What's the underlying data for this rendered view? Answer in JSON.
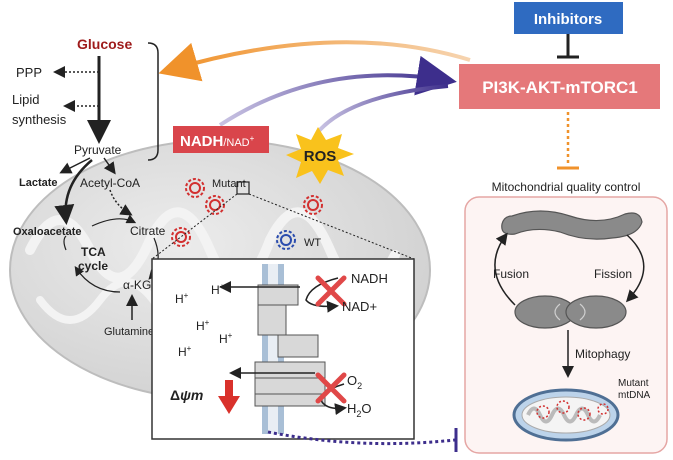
{
  "inhibitors": "Inhibitors",
  "pathway": "PI3K-AKT-mTORC1",
  "qc_title": "Mitochondrial quality control",
  "fusion": "Fusion",
  "fission": "Fission",
  "mitophagy": "Mitophagy",
  "mutant_mtdna": [
    "Mutant",
    "mtDNA"
  ],
  "glucose": "Glucose",
  "ppp": "PPP",
  "lipid": [
    "Lipid",
    "synthesis"
  ],
  "pyruvate": "Pyruvate",
  "lactate": "Lactate",
  "acetyl_coa": "Acetyl-CoA",
  "oxaloacetate": "Oxaloacetate",
  "citrate": "Citrate",
  "tca": [
    "TCA",
    "cycle"
  ],
  "akg": "α-KG",
  "glutamine": "Glutamine",
  "nadh_big": "NADH",
  "nadh_small": "/NAD",
  "nadh_sup": "+",
  "ros": "ROS",
  "mutant": "Mutant",
  "wt": "WT",
  "etc": {
    "nadh": "NADH",
    "nadplus": "NAD+",
    "h": "H",
    "plus": "+",
    "o2": "O",
    "o2_sub": "2",
    "h2o_h": "H",
    "h2o_sub": "2",
    "h2o_o": "O",
    "delta": "Δ",
    "psi": "ψm"
  },
  "colors": {
    "inhibitor_box": "#2f6bc1",
    "pathway_box": "#e5787a",
    "nadh_box": "#d9454b",
    "orange_arrow": "#f0922b",
    "purple_arrow": "#3d2e8c",
    "ros_star": "#f9c21c",
    "mito_gray": "#dcdcdc",
    "red_cross": "#e04848"
  }
}
